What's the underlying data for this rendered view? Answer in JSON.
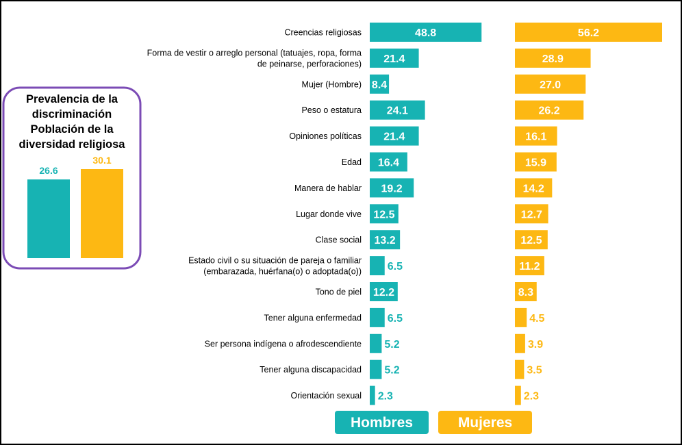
{
  "chart_data": [
    {
      "type": "bar",
      "orientation": "horizontal",
      "categories": [
        "Creencias religiosas",
        [
          "Forma de vestir o arreglo personal (tatuajes, ropa, forma",
          "de peinarse, perforaciones)"
        ],
        "Mujer (Hombre)",
        "Peso o estatura",
        "Opiniones políticas",
        "Edad",
        "Manera de hablar",
        "Lugar donde vive",
        "Clase social",
        [
          "Estado civil o su situación de pareja o familiar",
          "(embarazada, huérfana(o) o adoptada(o))"
        ],
        "Tono de piel",
        "Tener alguna enfermedad",
        "Ser persona indígena o afrodescendiente",
        "Tener alguna discapacidad",
        "Orientación sexual"
      ],
      "series": [
        {
          "name": "Hombres",
          "color": "#17B3B3",
          "values": [
            48.8,
            21.4,
            8.4,
            24.1,
            21.4,
            16.4,
            19.2,
            12.5,
            13.2,
            6.5,
            12.2,
            6.5,
            5.2,
            5.2,
            2.3
          ],
          "labels": [
            "48.8",
            "21.4",
            "8.4",
            "24.1",
            "21.4",
            "16.4",
            "19.2",
            "12.5",
            "13.2",
            "6.5",
            "12.2",
            "6.5",
            "5.2",
            "5.2",
            "2.3"
          ]
        },
        {
          "name": "Mujeres",
          "color": "#FDB813",
          "values": [
            56.2,
            28.9,
            27.0,
            26.2,
            16.1,
            15.9,
            14.2,
            12.7,
            12.5,
            11.2,
            8.3,
            4.5,
            3.9,
            3.5,
            2.3
          ],
          "labels": [
            "56.2",
            "28.9",
            "27.0",
            "26.2",
            "16.1",
            "15.9",
            "14.2",
            "12.7",
            "12.5",
            "11.2",
            "8.3",
            "4.5",
            "3.9",
            "3.5",
            "2.3"
          ]
        }
      ],
      "xlim": [
        0,
        56.2
      ],
      "grid": false,
      "legend": "bottom"
    },
    {
      "type": "bar",
      "title": [
        "Prevalencia de la",
        "discriminación",
        "Población de la",
        "diversidad religiosa"
      ],
      "series": [
        {
          "name": "Hombres",
          "color": "#17B3B3",
          "values": [
            26.6
          ],
          "labels": [
            "26.6"
          ]
        },
        {
          "name": "Mujeres",
          "color": "#FDB813",
          "values": [
            30.1
          ],
          "labels": [
            "30.1"
          ]
        }
      ],
      "ylim": [
        0,
        30.1
      ]
    }
  ],
  "legend": {
    "items": [
      {
        "label": "Hombres",
        "color": "#17B3B3"
      },
      {
        "label": "Mujeres",
        "color": "#FDB813"
      }
    ]
  },
  "colors": {
    "box_border": "#7B4BB5",
    "frame": "#000000"
  }
}
